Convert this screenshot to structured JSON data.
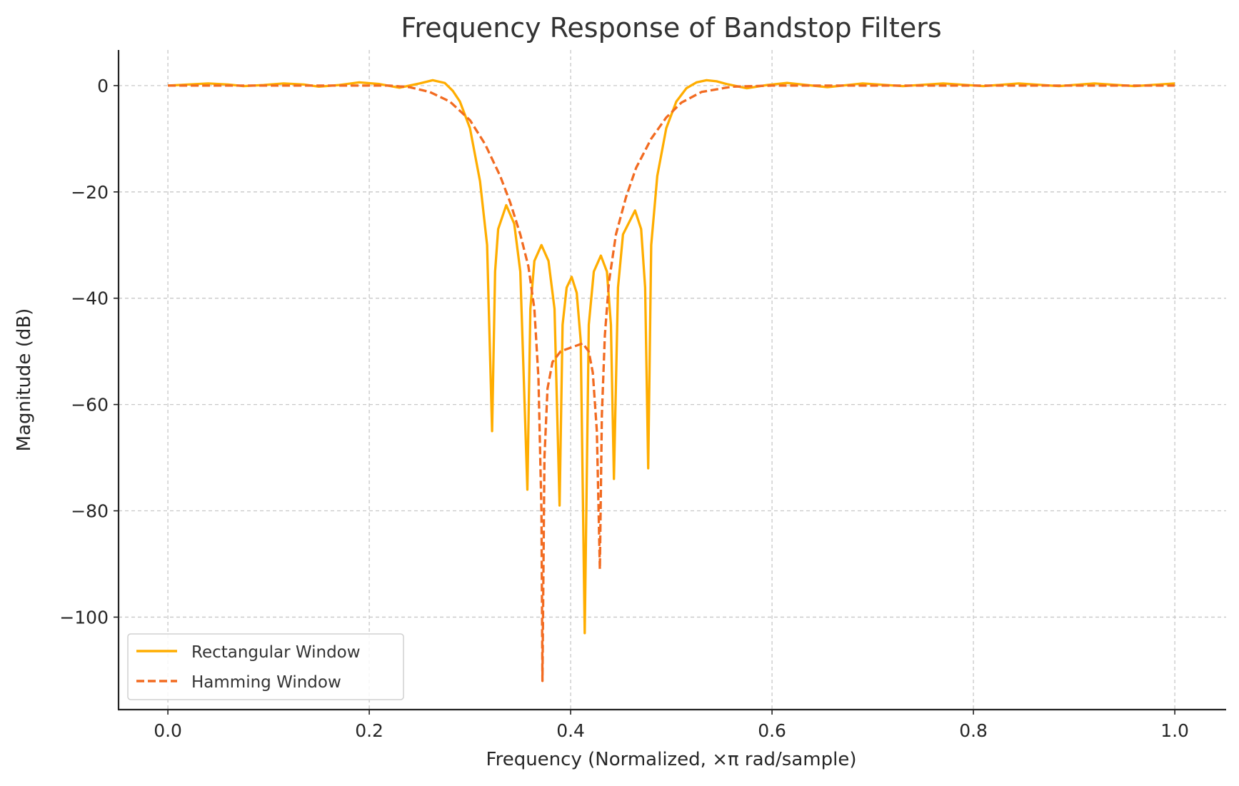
{
  "chart_data": {
    "type": "line",
    "title": "Frequency Response of Bandstop Filters",
    "xlabel": "Frequency (Normalized, ×π rad/sample)",
    "ylabel": "Magnitude (dB)",
    "xlim": [
      -0.049,
      1.051
    ],
    "ylim": [
      -117.4,
      6.7
    ],
    "xticks": [
      0.0,
      0.2,
      0.4,
      0.6,
      0.8,
      1.0
    ],
    "xtick_labels": [
      "0.0",
      "0.2",
      "0.4",
      "0.6",
      "0.8",
      "1.0"
    ],
    "yticks": [
      0,
      -20,
      -40,
      -60,
      -80,
      -100
    ],
    "ytick_labels": [
      "0",
      "−20",
      "−40",
      "−60",
      "−80",
      "−100"
    ],
    "grid": true,
    "legend_position": "lower-left",
    "series": [
      {
        "name": "Rectangular Window",
        "color": "#FFAD00",
        "style": "solid",
        "x": [
          0,
          0.02,
          0.04,
          0.06,
          0.075,
          0.095,
          0.115,
          0.135,
          0.15,
          0.17,
          0.19,
          0.21,
          0.23,
          0.25,
          0.263,
          0.275,
          0.283,
          0.29,
          0.3,
          0.31,
          0.317,
          0.322,
          0.325,
          0.328,
          0.336,
          0.344,
          0.35,
          0.357,
          0.36,
          0.364,
          0.371,
          0.378,
          0.384,
          0.389,
          0.392,
          0.396,
          0.401,
          0.406,
          0.41,
          0.414,
          0.418,
          0.423,
          0.43,
          0.436,
          0.44,
          0.443,
          0.447,
          0.452,
          0.464,
          0.47,
          0.474,
          0.477,
          0.48,
          0.486,
          0.495,
          0.505,
          0.515,
          0.525,
          0.535,
          0.545,
          0.555,
          0.575,
          0.595,
          0.615,
          0.635,
          0.655,
          0.69,
          0.73,
          0.77,
          0.81,
          0.845,
          0.885,
          0.92,
          0.96,
          1.0
        ],
        "y": [
          0,
          0.2,
          0.4,
          0.2,
          -0.1,
          0.1,
          0.4,
          0.2,
          -0.2,
          0.1,
          0.6,
          0.3,
          -0.4,
          0.4,
          1.0,
          0.5,
          -1,
          -3,
          -8,
          -18,
          -30,
          -65,
          -35,
          -27,
          -22.5,
          -26,
          -35,
          -76,
          -42,
          -33,
          -30,
          -33,
          -42,
          -79,
          -45,
          -38,
          -36,
          -39,
          -48,
          -103,
          -45,
          -35,
          -32,
          -35,
          -45,
          -74,
          -38,
          -28,
          -23.5,
          -27,
          -38,
          -72,
          -30,
          -17,
          -8,
          -3,
          -0.5,
          0.6,
          1.0,
          0.8,
          0.3,
          -0.5,
          0.1,
          0.5,
          0.1,
          -0.3,
          0.4,
          -0.1,
          0.4,
          -0.1,
          0.4,
          -0.1,
          0.4,
          -0.1,
          0.4
        ]
      },
      {
        "name": "Hamming Window",
        "color": "#F26B21",
        "style": "dashed",
        "x": [
          0,
          0.22,
          0.24,
          0.26,
          0.28,
          0.3,
          0.315,
          0.33,
          0.34,
          0.35,
          0.358,
          0.364,
          0.368,
          0.371,
          0.372,
          0.374,
          0.377,
          0.382,
          0.39,
          0.4,
          0.412,
          0.418,
          0.422,
          0.426,
          0.429,
          0.431,
          0.434,
          0.438,
          0.445,
          0.455,
          0.465,
          0.48,
          0.495,
          0.51,
          0.53,
          0.56,
          0.6,
          1.0
        ],
        "y": [
          0,
          0,
          -0.3,
          -1.2,
          -3,
          -6.5,
          -11,
          -17,
          -22,
          -28,
          -34,
          -42,
          -55,
          -80,
          -112,
          -70,
          -57,
          -52,
          -50,
          -49.3,
          -48.5,
          -50,
          -54,
          -65,
          -91,
          -62,
          -47,
          -37,
          -28,
          -21,
          -15.5,
          -10,
          -6,
          -3.2,
          -1.2,
          -0.2,
          0,
          0
        ]
      }
    ]
  }
}
